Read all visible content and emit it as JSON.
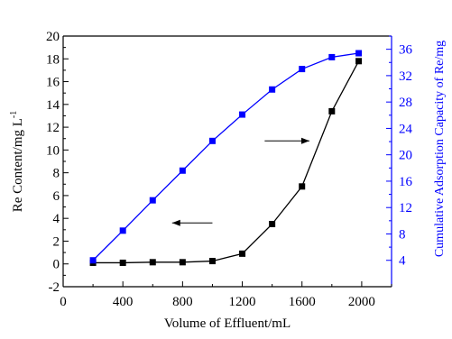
{
  "chart_data": {
    "type": "line",
    "xlabel": "Volume of Effluent/mL",
    "ylabel_left": "Re Content/mg L",
    "ylabel_left_superscript": "-1",
    "ylabel_right": "Cumulative Adsorption Capacity of Re/mg",
    "xlim": [
      0,
      2200
    ],
    "x_ticks": [
      0,
      400,
      800,
      1200,
      1600,
      2000
    ],
    "ylim_left": [
      -2,
      20
    ],
    "y_ticks_left": [
      -2,
      0,
      2,
      4,
      6,
      8,
      10,
      12,
      14,
      16,
      18,
      20
    ],
    "ylim_right": [
      0,
      38
    ],
    "y_ticks_right": [
      4,
      8,
      12,
      16,
      20,
      24,
      28,
      32,
      36
    ],
    "grid": false,
    "series": [
      {
        "axis": "left",
        "color": "#000000",
        "x": [
          200,
          400,
          600,
          800,
          1000,
          1200,
          1400,
          1600,
          1800,
          1980
        ],
        "y": [
          0.1,
          0.1,
          0.15,
          0.15,
          0.25,
          0.9,
          3.5,
          6.8,
          13.4,
          17.8
        ]
      },
      {
        "axis": "right",
        "color": "#0000ff",
        "x": [
          200,
          400,
          600,
          800,
          1000,
          1200,
          1400,
          1600,
          1800,
          1980
        ],
        "y": [
          4.0,
          8.5,
          13.1,
          17.6,
          22.1,
          26.1,
          29.9,
          33.0,
          34.8,
          35.4
        ]
      }
    ],
    "annotations": [
      {
        "type": "arrow",
        "direction": "right",
        "at": {
          "x": 1350,
          "y_left": 10.8
        },
        "length": 300
      },
      {
        "type": "arrow",
        "direction": "left",
        "at": {
          "x": 1000,
          "y_left": 3.6
        },
        "length": 270
      }
    ]
  }
}
